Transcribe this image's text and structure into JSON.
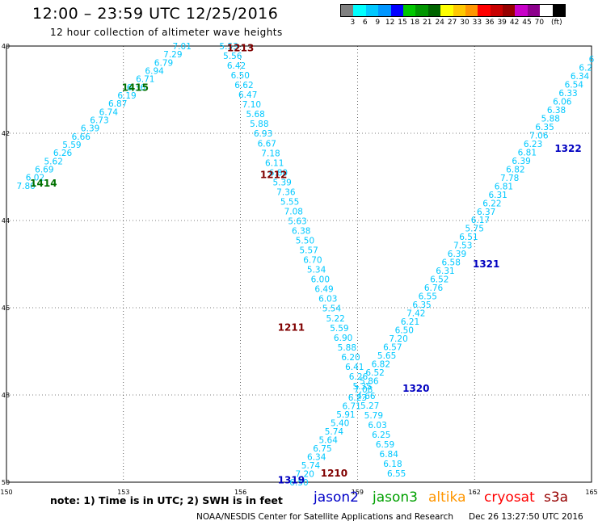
{
  "header": {
    "title": "12:00 – 23:59 UTC 12/25/2016",
    "subtitle": "12 hour collection of altimeter wave heights"
  },
  "legend": {
    "colors": [
      "#808080",
      "#00ffff",
      "#00c8ff",
      "#0096ff",
      "#0000ff",
      "#00c800",
      "#009600",
      "#006400",
      "#ffff00",
      "#ffc800",
      "#ff9600",
      "#ff0000",
      "#c80000",
      "#960000",
      "#c800c8",
      "#8c008c",
      "#ffffff",
      "#000000"
    ],
    "labels": [
      "3",
      "6",
      "9",
      "12",
      "15",
      "18",
      "21",
      "24",
      "27",
      "30",
      "33",
      "36",
      "39",
      "42",
      "45",
      "70",
      "(ft)"
    ]
  },
  "map": {
    "lon_ticks": [
      "150",
      "153",
      "156",
      "159",
      "162",
      "165"
    ],
    "lat_ticks": [
      "40",
      "42",
      "44",
      "46",
      "48",
      "50"
    ],
    "lon_range": [
      150,
      165
    ],
    "lat_range": [
      40,
      50
    ]
  },
  "tracks": [
    {
      "sat": "jason3",
      "color": "#00c8ff",
      "start": [
        150.5,
        43.2
      ],
      "end": [
        154.5,
        40.0
      ],
      "values": [
        "7.80",
        "6.02",
        "6.69",
        "5.62",
        "6.26",
        "5.59",
        "6.66",
        "6.39",
        "6.73",
        "6.74",
        "6.87",
        "6.19",
        "6.36",
        "6.71",
        "6.94",
        "6.79",
        "7.29",
        "7.01"
      ]
    },
    {
      "sat": "jason2",
      "color": "#00c8ff",
      "start": [
        155.7,
        40.0
      ],
      "end": [
        160.0,
        49.8
      ],
      "values": [
        "5.53",
        "5.56",
        "6.42",
        "6.50",
        "6.62",
        "6.47",
        "7.10",
        "5.68",
        "5.88",
        "6.93",
        "6.67",
        "7.18",
        "6.11",
        "6.80",
        "5.39",
        "7.36",
        "5.55",
        "7.08",
        "5.63",
        "6.38",
        "5.50",
        "5.57",
        "6.70",
        "5.34",
        "6.00",
        "6.49",
        "6.03",
        "5.54",
        "5.22",
        "5.59",
        "6.90",
        "5.88",
        "6.20",
        "6.41",
        "6.26",
        "5.35",
        "4.66",
        "5.27",
        "5.79",
        "6.03",
        "6.25",
        "6.59",
        "6.84",
        "6.18",
        "6.55"
      ]
    },
    {
      "sat": "jason2",
      "color": "#00c8ff",
      "start": [
        157.5,
        50.0
      ],
      "end": [
        165.0,
        40.3
      ],
      "values": [
        "6.50",
        "7.20",
        "5.74",
        "6.34",
        "6.75",
        "5.64",
        "5.74",
        "5.40",
        "5.91",
        "6.71",
        "6.23",
        "7.08",
        "5.86",
        "6.52",
        "6.82",
        "5.65",
        "6.57",
        "7.20",
        "6.50",
        "6.21",
        "7.42",
        "6.35",
        "6.55",
        "6.76",
        "6.52",
        "6.31",
        "6.58",
        "6.39",
        "7.53",
        "6.51",
        "5.75",
        "6.17",
        "6.37",
        "6.22",
        "6.31",
        "6.81",
        "7.78",
        "6.82",
        "6.39",
        "6.81",
        "6.23",
        "7.06",
        "6.35",
        "5.88",
        "6.38",
        "6.06",
        "6.33",
        "6.54",
        "6.34",
        "6.2",
        "6"
      ]
    }
  ],
  "pass_labels": [
    {
      "text": "1414",
      "color": "#007000",
      "lon": 150.95,
      "lat": 43.15
    },
    {
      "text": "1415",
      "color": "#007000",
      "lon": 153.3,
      "lat": 40.95
    },
    {
      "text": "1213",
      "color": "#800000",
      "lon": 156.0,
      "lat": 40.05
    },
    {
      "text": "1212",
      "color": "#800000",
      "lon": 156.85,
      "lat": 42.95
    },
    {
      "text": "1211",
      "color": "#800000",
      "lon": 157.3,
      "lat": 46.45
    },
    {
      "text": "1210",
      "color": "#800000",
      "lon": 158.4,
      "lat": 49.8
    },
    {
      "text": "1319",
      "color": "#0000c0",
      "lon": 157.3,
      "lat": 49.95
    },
    {
      "text": "1320",
      "color": "#0000c0",
      "lon": 160.5,
      "lat": 47.85
    },
    {
      "text": "1321",
      "color": "#0000c0",
      "lon": 162.3,
      "lat": 45.0
    },
    {
      "text": "1322",
      "color": "#0000c0",
      "lon": 164.4,
      "lat": 42.35
    }
  ],
  "note": "note:  1) Time is in UTC;  2) SWH is in feet",
  "satellites": [
    {
      "name": "jason2",
      "color": "#0000c8"
    },
    {
      "name": "jason3",
      "color": "#00a000"
    },
    {
      "name": "altika",
      "color": "#ff9600"
    },
    {
      "name": "cryosat",
      "color": "#ff0000"
    },
    {
      "name": "s3a",
      "color": "#960000"
    }
  ],
  "footer": {
    "center": "NOAA/NESDIS Center for Satellite Applications and Research",
    "date": "Dec 26 13:27:50 UTC 2016"
  }
}
